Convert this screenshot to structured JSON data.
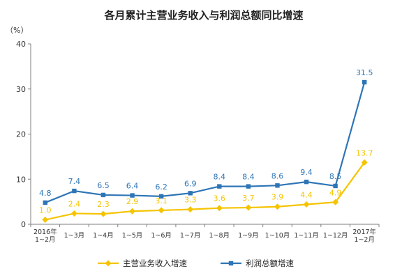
{
  "chart_data": {
    "type": "line",
    "title": "各月累计主营业务收入与利润总额同比增速",
    "unit_label": "（%）",
    "ylim": [
      0,
      40
    ],
    "yticks": [
      0,
      10,
      20,
      30,
      40
    ],
    "grid": false,
    "legend_position": "bottom",
    "categories": [
      [
        "2016年",
        "1~2月"
      ],
      [
        "1~3月"
      ],
      [
        "1~4月"
      ],
      [
        "1~5月"
      ],
      [
        "1~6月"
      ],
      [
        "1~7月"
      ],
      [
        "1~8月"
      ],
      [
        "1~9月"
      ],
      [
        "1~10月"
      ],
      [
        "1~11月"
      ],
      [
        "1~12月"
      ],
      [
        "2017年",
        "1~2月"
      ]
    ],
    "series": [
      {
        "name": "主营业务收入增速",
        "color": "#f5c400",
        "marker": "diamond",
        "values": [
          1.0,
          2.4,
          2.3,
          2.9,
          3.1,
          3.3,
          3.6,
          3.7,
          3.9,
          4.4,
          4.9,
          13.7
        ],
        "labels": [
          "1.0",
          "2.4",
          "2.3",
          "2.9",
          "3.1",
          "3.3",
          "3.6",
          "3.7",
          "3.9",
          "4.4",
          "4.9",
          "13.7"
        ]
      },
      {
        "name": "利润总额增速",
        "color": "#2e75b6",
        "marker": "square",
        "values": [
          4.8,
          7.4,
          6.5,
          6.4,
          6.2,
          6.9,
          8.4,
          8.4,
          8.6,
          9.4,
          8.5,
          31.5
        ],
        "labels": [
          "4.8",
          "7.4",
          "6.5",
          "6.4",
          "6.2",
          "6.9",
          "8.4",
          "8.4",
          "8.6",
          "9.4",
          "8.5",
          "31.5"
        ]
      }
    ]
  }
}
